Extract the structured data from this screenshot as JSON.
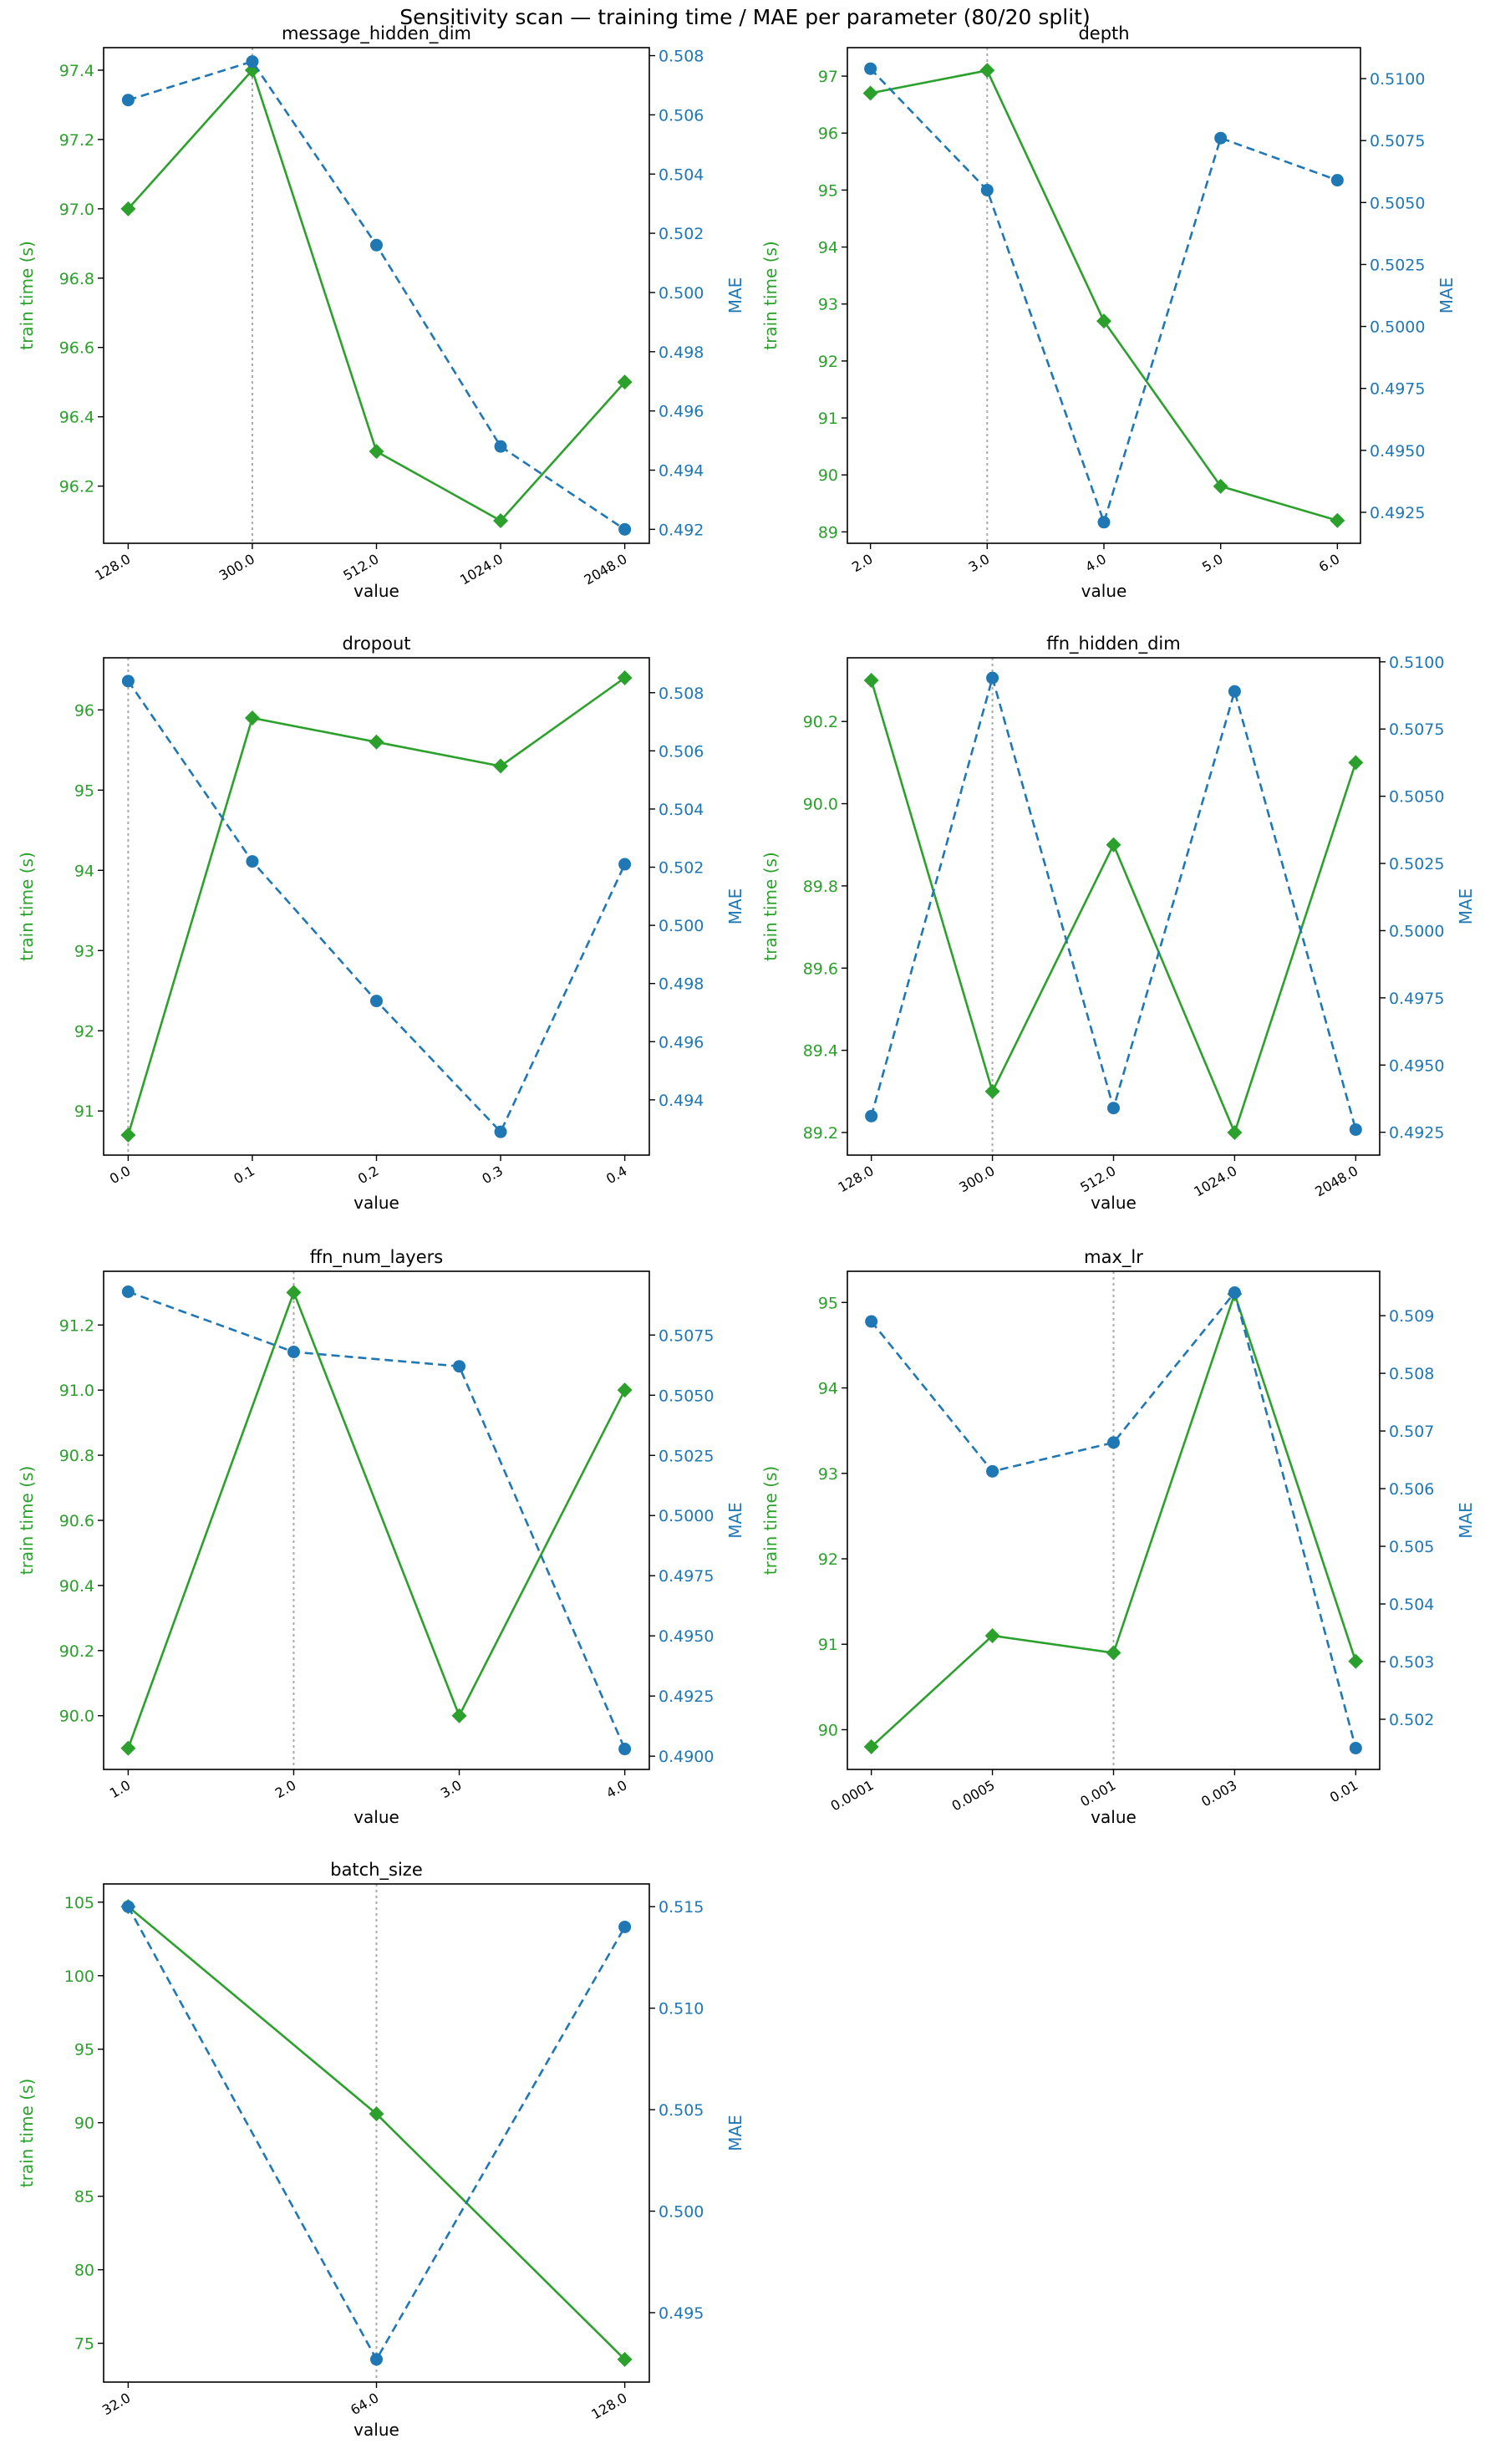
{
  "figure": {
    "title": "Sensitivity scan — training time / MAE per parameter (80/20 split)"
  },
  "colors": {
    "train_time": "#2ca02c",
    "mae": "#1f77b4",
    "marker_line": "#aaaaaa"
  },
  "chart_data": [
    {
      "type": "line",
      "title": "message_hidden_dim",
      "xlabel": "value",
      "ylabel_left": "train time (s)",
      "ylabel_right": "MAE",
      "categories": [
        "128.0",
        "300.0",
        "512.0",
        "1024.0",
        "2048.0"
      ],
      "marked_category": "300.0",
      "series": [
        {
          "name": "train time (s)",
          "axis": "left",
          "values": [
            97.0,
            97.4,
            96.3,
            96.1,
            96.5
          ]
        },
        {
          "name": "MAE",
          "axis": "right",
          "values": [
            0.5065,
            0.5078,
            0.5016,
            0.4948,
            0.492
          ]
        }
      ],
      "ylim_left": [
        96.035,
        97.465
      ],
      "yticks_left": [
        "96.2",
        "96.4",
        "96.6",
        "96.8",
        "97.0",
        "97.2",
        "97.4"
      ],
      "ylim_right": [
        0.49153,
        0.50827
      ],
      "yticks_right": [
        "0.492",
        "0.494",
        "0.496",
        "0.498",
        "0.500",
        "0.502",
        "0.504",
        "0.506",
        "0.508"
      ]
    },
    {
      "type": "line",
      "title": "depth",
      "xlabel": "value",
      "ylabel_left": "train time (s)",
      "ylabel_right": "MAE",
      "categories": [
        "2.0",
        "3.0",
        "4.0",
        "5.0",
        "6.0"
      ],
      "marked_category": "3.0",
      "series": [
        {
          "name": "train time (s)",
          "axis": "left",
          "values": [
            96.7,
            97.1,
            92.7,
            89.8,
            89.2
          ]
        },
        {
          "name": "MAE",
          "axis": "right",
          "values": [
            0.5104,
            0.5055,
            0.4921,
            0.5076,
            0.5059
          ]
        }
      ],
      "ylim_left": [
        88.8,
        97.5
      ],
      "yticks_left": [
        "89",
        "90",
        "91",
        "92",
        "93",
        "94",
        "95",
        "96",
        "97"
      ],
      "ylim_right": [
        0.49125,
        0.51125
      ],
      "yticks_right": [
        "0.4925",
        "0.4950",
        "0.4975",
        "0.5000",
        "0.5025",
        "0.5050",
        "0.5075",
        "0.5100"
      ]
    },
    {
      "type": "line",
      "title": "dropout",
      "xlabel": "value",
      "ylabel_left": "train time (s)",
      "ylabel_right": "MAE",
      "categories": [
        "0.0",
        "0.1",
        "0.2",
        "0.3",
        "0.4"
      ],
      "marked_category": "0.0",
      "series": [
        {
          "name": "train time (s)",
          "axis": "left",
          "values": [
            90.7,
            95.9,
            95.6,
            95.3,
            96.4
          ]
        },
        {
          "name": "MAE",
          "axis": "right",
          "values": [
            0.5084,
            0.5022,
            0.4974,
            0.4929,
            0.5021
          ]
        }
      ],
      "ylim_left": [
        90.45,
        96.65
      ],
      "yticks_left": [
        "91",
        "92",
        "93",
        "94",
        "95",
        "96"
      ],
      "ylim_right": [
        0.4921,
        0.5092
      ],
      "yticks_right": [
        "0.494",
        "0.496",
        "0.498",
        "0.500",
        "0.502",
        "0.504",
        "0.506",
        "0.508"
      ]
    },
    {
      "type": "line",
      "title": "ffn_hidden_dim",
      "xlabel": "value",
      "ylabel_left": "train time (s)",
      "ylabel_right": "MAE",
      "categories": [
        "128.0",
        "300.0",
        "512.0",
        "1024.0",
        "2048.0"
      ],
      "marked_category": "300.0",
      "series": [
        {
          "name": "train time (s)",
          "axis": "left",
          "values": [
            90.3,
            89.3,
            89.9,
            89.2,
            90.1
          ]
        },
        {
          "name": "MAE",
          "axis": "right",
          "values": [
            0.4931,
            0.5094,
            0.4934,
            0.5089,
            0.4926
          ]
        }
      ],
      "ylim_left": [
        89.145,
        90.355
      ],
      "yticks_left": [
        "89.2",
        "89.4",
        "89.6",
        "89.8",
        "90.0",
        "90.2"
      ],
      "ylim_right": [
        0.49165,
        0.51015
      ],
      "yticks_right": [
        "0.4925",
        "0.4950",
        "0.4975",
        "0.5000",
        "0.5025",
        "0.5050",
        "0.5075",
        "0.5100"
      ]
    },
    {
      "type": "line",
      "title": "ffn_num_layers",
      "xlabel": "value",
      "ylabel_left": "train time (s)",
      "ylabel_right": "MAE",
      "categories": [
        "1.0",
        "2.0",
        "3.0",
        "4.0"
      ],
      "marked_category": "2.0",
      "series": [
        {
          "name": "train time (s)",
          "axis": "left",
          "values": [
            89.9,
            91.3,
            90.0,
            91.0
          ]
        },
        {
          "name": "MAE",
          "axis": "right",
          "values": [
            0.5093,
            0.5068,
            0.5062,
            0.4903
          ]
        }
      ],
      "ylim_left": [
        89.835,
        91.365
      ],
      "yticks_left": [
        "90.0",
        "90.2",
        "90.4",
        "90.6",
        "90.8",
        "91.0",
        "91.2"
      ],
      "ylim_right": [
        0.48945,
        0.51015
      ],
      "yticks_right": [
        "0.4900",
        "0.4925",
        "0.4950",
        "0.4975",
        "0.5000",
        "0.5025",
        "0.5050",
        "0.5075"
      ]
    },
    {
      "type": "line",
      "title": "max_lr",
      "xlabel": "value",
      "ylabel_left": "train time (s)",
      "ylabel_right": "MAE",
      "categories": [
        "0.0001",
        "0.0005",
        "0.001",
        "0.003",
        "0.01"
      ],
      "marked_category": "0.001",
      "series": [
        {
          "name": "train time (s)",
          "axis": "left",
          "values": [
            89.8,
            91.1,
            90.9,
            95.1,
            90.8
          ]
        },
        {
          "name": "MAE",
          "axis": "right",
          "values": [
            0.5089,
            0.5063,
            0.5068,
            0.5094,
            0.5015
          ]
        }
      ],
      "ylim_left": [
        89.535,
        95.365
      ],
      "yticks_left": [
        "90",
        "91",
        "92",
        "93",
        "94",
        "95"
      ],
      "ylim_right": [
        0.50113,
        0.50977
      ],
      "yticks_right": [
        "0.502",
        "0.503",
        "0.504",
        "0.505",
        "0.506",
        "0.507",
        "0.508",
        "0.509"
      ]
    },
    {
      "type": "line",
      "title": "batch_size",
      "xlabel": "value",
      "ylabel_left": "train time (s)",
      "ylabel_right": "MAE",
      "categories": [
        "32.0",
        "64.0",
        "128.0"
      ],
      "marked_category": "64.0",
      "series": [
        {
          "name": "train time (s)",
          "axis": "left",
          "values": [
            104.7,
            90.6,
            73.9
          ]
        },
        {
          "name": "MAE",
          "axis": "right",
          "values": [
            0.515,
            0.4927,
            0.514
          ]
        }
      ],
      "ylim_left": [
        72.36,
        106.24
      ],
      "yticks_left": [
        "75",
        "80",
        "85",
        "90",
        "95",
        "100",
        "105"
      ],
      "ylim_right": [
        0.49158,
        0.51612
      ],
      "yticks_right": [
        "0.495",
        "0.500",
        "0.505",
        "0.510",
        "0.515"
      ]
    }
  ]
}
